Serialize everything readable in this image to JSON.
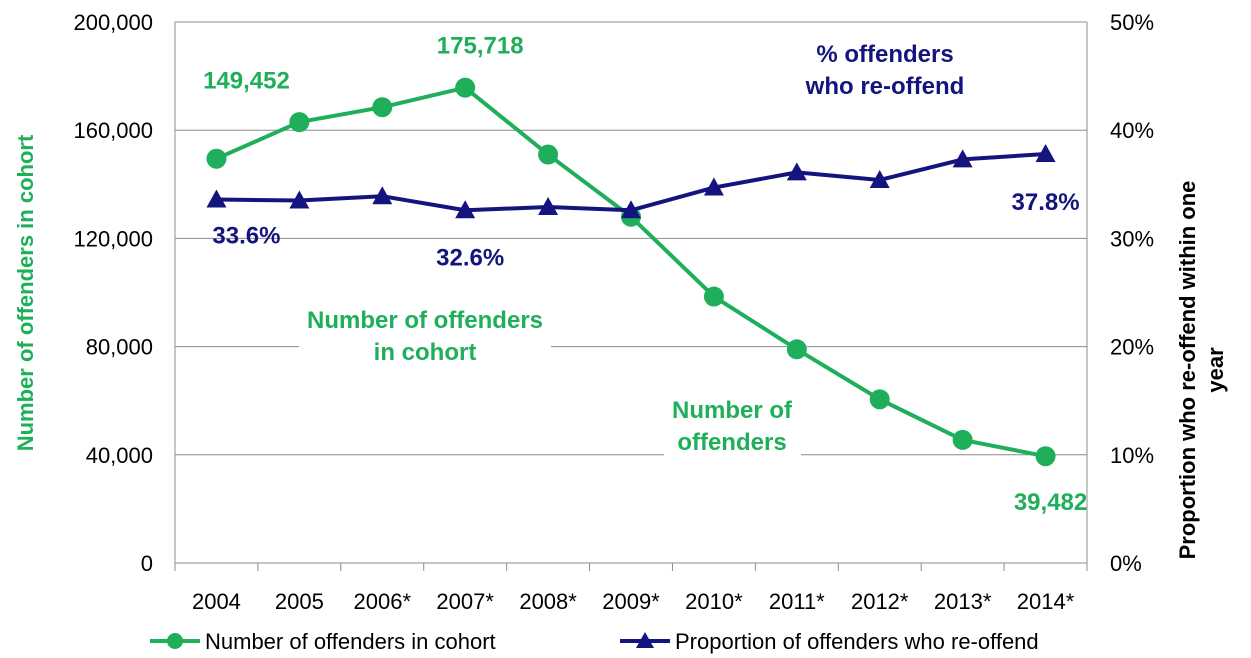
{
  "chart_data": {
    "type": "line",
    "categories": [
      "2004",
      "2005",
      "2006*",
      "2007*",
      "2008*",
      "2009*",
      "2010*",
      "2011*",
      "2012*",
      "2013*",
      "2014*"
    ],
    "series": [
      {
        "name": "Number of offenders in cohort",
        "axis": "left",
        "color": "#1FAF5A",
        "marker": "circle",
        "values": [
          149452,
          163000,
          168500,
          175718,
          151000,
          128000,
          98500,
          79000,
          60500,
          45500,
          39482
        ]
      },
      {
        "name": "Proportion of offenders who re-offend",
        "axis": "right",
        "color": "#14147F",
        "marker": "triangle",
        "values": [
          33.6,
          33.5,
          33.9,
          32.6,
          32.9,
          32.6,
          34.7,
          36.1,
          35.4,
          37.3,
          37.8
        ]
      }
    ],
    "y_left": {
      "label": "Number of offenders in cohort",
      "range": [
        0,
        200000
      ],
      "ticks": [
        "0",
        "40,000",
        "80,000",
        "120,000",
        "160,000",
        "200,000"
      ]
    },
    "y_right": {
      "label": "Proportion who re-offend within one year",
      "range": [
        0,
        50
      ],
      "ticks": [
        "0%",
        "10%",
        "20%",
        "30%",
        "40%",
        "50%"
      ]
    },
    "grid": "horizontal",
    "legend": "bottom",
    "data_labels": [
      {
        "series": 0,
        "index": 0,
        "text": "149,452"
      },
      {
        "series": 0,
        "index": 3,
        "text": "175,718"
      },
      {
        "series": 0,
        "index": 10,
        "text": "39,482"
      },
      {
        "series": 1,
        "index": 0,
        "text": "33.6%"
      },
      {
        "series": 1,
        "index": 3,
        "text": "32.6%"
      },
      {
        "series": 1,
        "index": 10,
        "text": "37.8%"
      }
    ],
    "annotations": [
      {
        "lines": [
          "% offenders",
          "who re-offend"
        ],
        "color": "#14147F"
      },
      {
        "lines": [
          "Number of offenders",
          "in cohort"
        ],
        "color": "#1FAF5A"
      },
      {
        "lines": [
          "Number of",
          "offenders"
        ],
        "color": "#1FAF5A"
      }
    ]
  }
}
